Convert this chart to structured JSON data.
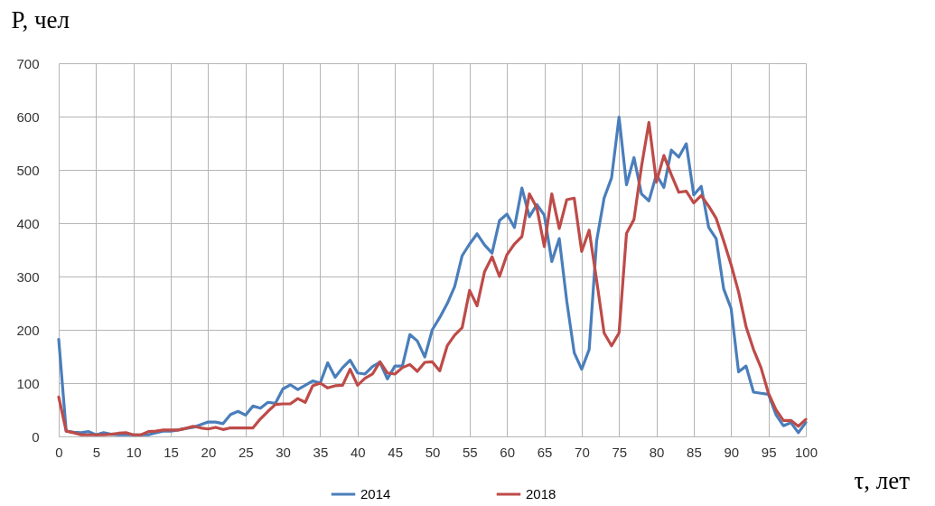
{
  "chart_data": {
    "type": "line",
    "xlabel": "τ, лет",
    "ylabel": "P, чел",
    "x": [
      0,
      1,
      2,
      3,
      4,
      5,
      6,
      7,
      8,
      9,
      10,
      11,
      12,
      13,
      14,
      15,
      16,
      17,
      18,
      19,
      20,
      21,
      22,
      23,
      24,
      25,
      26,
      27,
      28,
      29,
      30,
      31,
      32,
      33,
      34,
      35,
      36,
      37,
      38,
      39,
      40,
      41,
      42,
      43,
      44,
      45,
      46,
      47,
      48,
      49,
      50,
      51,
      52,
      53,
      54,
      55,
      56,
      57,
      58,
      59,
      60,
      61,
      62,
      63,
      64,
      65,
      66,
      67,
      68,
      69,
      70,
      71,
      72,
      73,
      74,
      75,
      76,
      77,
      78,
      79,
      80,
      81,
      82,
      83,
      84,
      85,
      86,
      87,
      88,
      89,
      90,
      91,
      92,
      93,
      94,
      95,
      96,
      97,
      98,
      99,
      100
    ],
    "series": [
      {
        "name": "2014",
        "color": "#4a7ebb",
        "values": [
          182,
          10,
          8,
          7,
          9,
          3,
          7,
          4,
          3,
          3,
          3,
          3,
          3,
          7,
          10,
          10,
          12,
          15,
          17,
          22,
          27,
          27,
          24,
          41,
          47,
          40,
          57,
          53,
          64,
          62,
          89,
          97,
          88,
          96,
          104,
          100,
          138,
          111,
          129,
          143,
          119,
          117,
          131,
          139,
          108,
          132,
          132,
          191,
          179,
          149,
          200,
          223,
          249,
          281,
          339,
          361,
          380,
          359,
          344,
          405,
          417,
          392,
          466,
          412,
          435,
          415,
          328,
          371,
          254,
          157,
          126,
          163,
          367,
          447,
          485,
          599,
          472,
          523,
          455,
          442,
          491,
          467,
          537,
          524,
          549,
          453,
          469,
          392,
          371,
          277,
          240,
          121,
          132,
          83,
          81,
          79,
          41,
          20,
          26,
          7,
          26
        ]
      },
      {
        "name": "2018",
        "color": "#be4b48",
        "values": [
          74,
          10,
          7,
          3,
          3,
          3,
          3,
          4,
          6,
          7,
          3,
          3,
          9,
          10,
          12,
          12,
          12,
          15,
          19,
          16,
          14,
          17,
          13,
          16,
          16,
          16,
          16,
          33,
          47,
          60,
          61,
          61,
          71,
          64,
          95,
          100,
          91,
          95,
          96,
          126,
          96,
          109,
          117,
          140,
          119,
          117,
          129,
          135,
          122,
          139,
          140,
          123,
          170,
          190,
          204,
          274,
          245,
          309,
          337,
          300,
          341,
          361,
          375,
          455,
          429,
          356,
          455,
          390,
          444,
          447,
          347,
          387,
          293,
          194,
          170,
          194,
          381,
          407,
          506,
          589,
          477,
          527,
          491,
          458,
          460,
          438,
          452,
          432,
          409,
          367,
          322,
          271,
          206,
          163,
          129,
          81,
          50,
          30,
          30,
          19,
          32
        ]
      }
    ],
    "xlim": [
      0,
      100
    ],
    "ylim": [
      0,
      700
    ],
    "xticks": [
      0,
      5,
      10,
      15,
      20,
      25,
      30,
      35,
      40,
      45,
      50,
      55,
      60,
      65,
      70,
      75,
      80,
      85,
      90,
      95,
      100
    ],
    "yticks": [
      0,
      100,
      200,
      300,
      400,
      500,
      600,
      700
    ],
    "grid": true,
    "legend": "bottom"
  }
}
